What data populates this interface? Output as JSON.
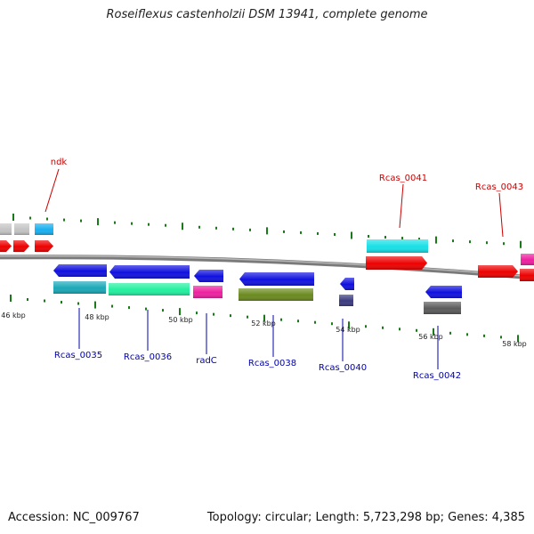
{
  "title": "Roseiflexus castenholzii DSM 13941, complete genome",
  "footer": {
    "accession": "Accession: NC_009767",
    "summary": "Topology: circular; Length: 5,723,298 bp; Genes: 4,385"
  },
  "scale_labels": [
    "46 kbp",
    "48 kbp",
    "50 kbp",
    "52 kbp",
    "54 kbp",
    "56 kbp",
    "58 kbp"
  ],
  "gene_labels_top": [
    "ndk",
    "Rcas_0041",
    "Rcas_0043"
  ],
  "gene_labels_bottom": [
    "Rcas_0035",
    "Rcas_0036",
    "radC",
    "Rcas_0038",
    "Rcas_0040",
    "Rcas_0042"
  ],
  "colors": {
    "backbone": "#808080",
    "tick": "#1a7a1a",
    "label_top": "#cc0000",
    "label_bottom": "#0000aa",
    "red": "#ee0000",
    "blue": "#1010e0",
    "cyan": "#16e0e8",
    "teal": "#1aa8b8",
    "mint": "#22f0a0",
    "magenta": "#ee20a0",
    "olive": "#6a8a1e",
    "navy": "#3a3a80",
    "grey": "#5a5a5a",
    "lightgrey": "#c4c4c4",
    "skyblue": "#18b0f0"
  }
}
